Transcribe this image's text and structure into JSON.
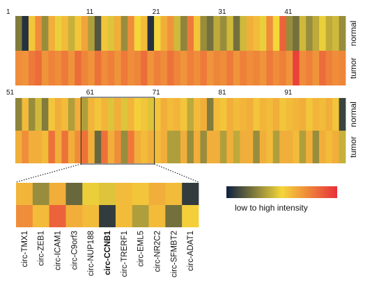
{
  "chart_data": {
    "type": "heatmap",
    "panels": [
      {
        "tick_labels": [
          "1",
          "11",
          "21",
          "31",
          "41"
        ],
        "row_labels": [
          "normal",
          "tumor"
        ],
        "rows": [
          [
            0.25,
            0.05,
            0.55,
            0.72,
            0.3,
            0.62,
            0.48,
            0.58,
            0.4,
            0.55,
            0.65,
            0.35,
            0.15,
            0.55,
            0.45,
            0.62,
            0.3,
            0.72,
            0.5,
            0.58,
            0.05,
            0.5,
            0.62,
            0.7,
            0.42,
            0.28,
            0.78,
            0.55,
            0.3,
            0.22,
            0.38,
            0.3,
            0.42,
            0.22,
            0.42,
            0.62,
            0.58,
            0.48,
            0.72,
            0.5,
            0.85,
            0.3,
            0.22,
            0.42,
            0.3,
            0.38,
            0.48,
            0.38,
            0.42,
            0.3
          ],
          [
            0.72,
            0.7,
            0.78,
            0.82,
            0.7,
            0.75,
            0.72,
            0.78,
            0.7,
            0.82,
            0.74,
            0.7,
            0.8,
            0.72,
            0.76,
            0.7,
            0.78,
            0.72,
            0.74,
            0.82,
            0.7,
            0.76,
            0.72,
            0.8,
            0.74,
            0.7,
            0.76,
            0.72,
            0.78,
            0.7,
            0.74,
            0.72,
            0.78,
            0.7,
            0.76,
            0.72,
            0.74,
            0.7,
            0.78,
            0.72,
            0.76,
            0.7,
            0.95,
            0.72,
            0.76,
            0.7,
            0.82,
            0.76,
            0.72,
            0.74
          ]
        ]
      },
      {
        "tick_labels": [
          "51",
          "61",
          "71",
          "81",
          "91"
        ],
        "row_labels": [
          "normal",
          "tumor"
        ],
        "rows": [
          [
            0.28,
            0.58,
            0.3,
            0.42,
            0.25,
            0.55,
            0.62,
            0.58,
            0.35,
            0.62,
            0.35,
            0.6,
            0.55,
            0.6,
            0.45,
            0.62,
            0.45,
            0.6,
            0.52,
            0.55,
            0.45,
            0.55,
            0.62,
            0.58,
            0.6,
            0.55,
            0.38,
            0.58,
            0.62,
            0.25,
            0.58,
            0.55,
            0.62,
            0.58,
            0.6,
            0.62,
            0.55,
            0.6,
            0.58,
            0.62,
            0.55,
            0.58,
            0.6,
            0.62,
            0.55,
            0.6,
            0.58,
            0.62,
            0.55,
            0.1
          ],
          [
            0.62,
            0.72,
            0.62,
            0.62,
            0.58,
            0.8,
            0.62,
            0.8,
            0.62,
            0.72,
            0.8,
            0.62,
            0.2,
            0.8,
            0.62,
            0.72,
            0.3,
            0.78,
            0.62,
            0.58,
            0.62,
            0.58,
            0.62,
            0.35,
            0.35,
            0.62,
            0.3,
            0.62,
            0.3,
            0.62,
            0.62,
            0.35,
            0.62,
            0.38,
            0.62,
            0.62,
            0.3,
            0.62,
            0.58,
            0.35,
            0.62,
            0.62,
            0.58,
            0.35,
            0.62,
            0.3,
            0.62,
            0.58,
            0.62,
            0.4
          ]
        ]
      }
    ],
    "zoom": {
      "genes": [
        "circ-TMX1",
        "circ-ZEB1",
        "circ-ICAM1",
        "circ-C9orf3",
        "circ-NUP188",
        "circ-CCNB1",
        "circ-TRERF1",
        "circ-EML5",
        "circ-NR2C2",
        "circ-SFMBT2",
        "circ-ADAT1"
      ],
      "bold_gene": "circ-CCNB1",
      "rows": [
        [
          0.6,
          0.3,
          0.62,
          0.2,
          0.48,
          0.45,
          0.58,
          0.55,
          0.62,
          0.58,
          0.08
        ],
        [
          0.72,
          0.58,
          0.85,
          0.62,
          0.58,
          0.08,
          0.58,
          0.35,
          0.58,
          0.22,
          0.52
        ]
      ]
    },
    "colorbar": {
      "label": "low to high intensity",
      "colors": [
        "#0d1f3f",
        "#f4d63a",
        "#e8303a"
      ]
    }
  }
}
